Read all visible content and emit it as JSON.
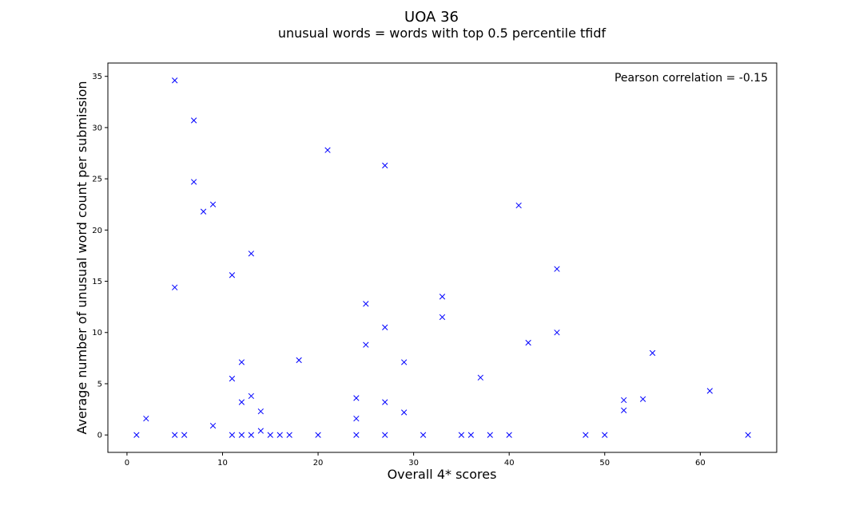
{
  "chart_data": {
    "type": "scatter",
    "title": "UOA 36",
    "subtitle": "unusual words = words with top 0.5 percentile tfidf",
    "xlabel": "Overall 4* scores",
    "ylabel": "Average number of unusual word count per submission",
    "xlim": [
      -2,
      68
    ],
    "ylim": [
      -1.7,
      36.3
    ],
    "xticks": [
      0,
      10,
      20,
      30,
      40,
      50,
      60
    ],
    "yticks": [
      0,
      5,
      10,
      15,
      20,
      25,
      30,
      35
    ],
    "grid": false,
    "marker": "x",
    "color": "#0000ff",
    "annotation": "Pearson correlation = -0.15",
    "points": [
      [
        5,
        34.6
      ],
      [
        7,
        30.7
      ],
      [
        21,
        27.8
      ],
      [
        27,
        26.3
      ],
      [
        7,
        24.7
      ],
      [
        9,
        22.5
      ],
      [
        41,
        22.4
      ],
      [
        8,
        21.8
      ],
      [
        13,
        17.7
      ],
      [
        45,
        16.2
      ],
      [
        11,
        15.6
      ],
      [
        5,
        14.4
      ],
      [
        33,
        13.5
      ],
      [
        25,
        12.8
      ],
      [
        33,
        11.5
      ],
      [
        27,
        10.5
      ],
      [
        45,
        10.0
      ],
      [
        42,
        9.0
      ],
      [
        25,
        8.8
      ],
      [
        55,
        8.0
      ],
      [
        18,
        7.3
      ],
      [
        12,
        7.1
      ],
      [
        29,
        7.1
      ],
      [
        37,
        5.6
      ],
      [
        11,
        5.5
      ],
      [
        61,
        4.3
      ],
      [
        13,
        3.8
      ],
      [
        24,
        3.6
      ],
      [
        52,
        3.4
      ],
      [
        54,
        3.5
      ],
      [
        12,
        3.2
      ],
      [
        27,
        3.2
      ],
      [
        14,
        2.3
      ],
      [
        29,
        2.2
      ],
      [
        52,
        2.4
      ],
      [
        2,
        1.6
      ],
      [
        24,
        1.6
      ],
      [
        9,
        0.9
      ],
      [
        14,
        0.4
      ],
      [
        1,
        0
      ],
      [
        5,
        0
      ],
      [
        6,
        0
      ],
      [
        11,
        0
      ],
      [
        12,
        0
      ],
      [
        13,
        0
      ],
      [
        15,
        0
      ],
      [
        16,
        0
      ],
      [
        17,
        0
      ],
      [
        20,
        0
      ],
      [
        24,
        0
      ],
      [
        27,
        0
      ],
      [
        31,
        0
      ],
      [
        35,
        0
      ],
      [
        36,
        0
      ],
      [
        38,
        0
      ],
      [
        40,
        0
      ],
      [
        48,
        0
      ],
      [
        50,
        0
      ],
      [
        65,
        0
      ]
    ]
  }
}
